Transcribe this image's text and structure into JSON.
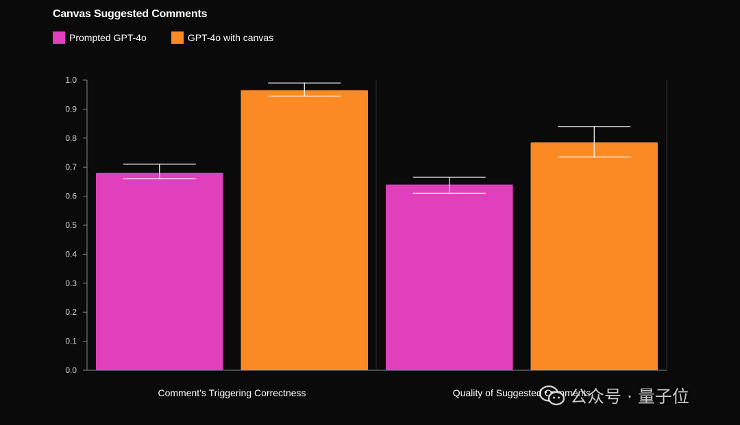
{
  "chart_data": {
    "type": "bar",
    "title": "Canvas Suggested Comments",
    "categories": [
      "Comment’s Triggering Correctness",
      "Quality of Suggested Comments"
    ],
    "series": [
      {
        "name": "Prompted GPT-4o",
        "color": "#e040bb",
        "values": [
          0.68,
          0.64
        ],
        "error_low": [
          0.66,
          0.61
        ],
        "error_high": [
          0.71,
          0.665
        ]
      },
      {
        "name": "GPT-4o with canvas",
        "color": "#fb8a24",
        "values": [
          0.965,
          0.785
        ],
        "error_low": [
          0.945,
          0.735
        ],
        "error_high": [
          0.99,
          0.84
        ]
      }
    ],
    "ylim": [
      0,
      1.0
    ],
    "yticks": [
      "0.0",
      "0.1",
      "0.2",
      "0.3",
      "0.4",
      "0.5",
      "0.6",
      "0.7",
      "0.8",
      "0.9",
      "1.0"
    ],
    "xlabel": "",
    "ylabel": "",
    "grid": false,
    "legend_position": "top-left"
  },
  "watermark": {
    "text": "公众号 · 量子位",
    "icon": "wechat-icon"
  }
}
